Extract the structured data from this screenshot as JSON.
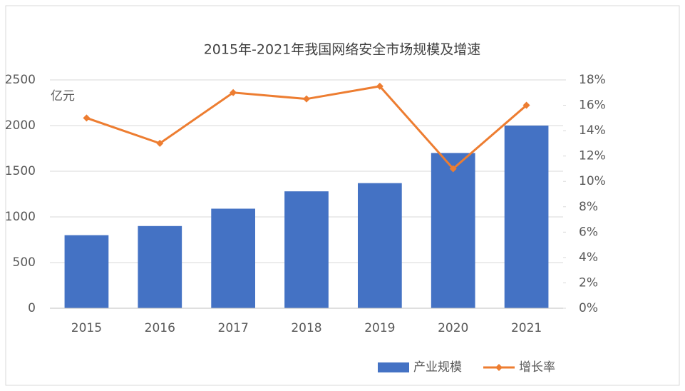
{
  "chart_data": {
    "type": "bar-line",
    "title": "2015年-2021年我国网络安全市场规模及增速",
    "y_label": "亿元",
    "categories": [
      "2015",
      "2016",
      "2017",
      "2018",
      "2019",
      "2020",
      "2021"
    ],
    "series": [
      {
        "name": "产业规模",
        "type": "bar",
        "color": "#4472c4",
        "values": [
          800,
          900,
          1090,
          1280,
          1370,
          1700,
          2000
        ]
      },
      {
        "name": "增长率",
        "type": "line",
        "axis": "y2",
        "color": "#ed7d31",
        "values": [
          15,
          13,
          17,
          16.5,
          17.5,
          11,
          16
        ]
      }
    ],
    "ylim": [
      0,
      2500
    ],
    "yticks": [
      0,
      500,
      1000,
      1500,
      2000,
      2500
    ],
    "y2lim": [
      0,
      18
    ],
    "y2ticks": [
      {
        "value": 0,
        "label": "0%"
      },
      {
        "value": 2,
        "label": "2%"
      },
      {
        "value": 4,
        "label": "4%"
      },
      {
        "value": 6,
        "label": "6%"
      },
      {
        "value": 8,
        "label": "8%"
      },
      {
        "value": 10,
        "label": "10%"
      },
      {
        "value": 12,
        "label": "12%"
      },
      {
        "value": 14,
        "label": "14%"
      },
      {
        "value": 16,
        "label": "16%"
      },
      {
        "value": 18,
        "label": "18%"
      }
    ],
    "legend": "bottom"
  }
}
